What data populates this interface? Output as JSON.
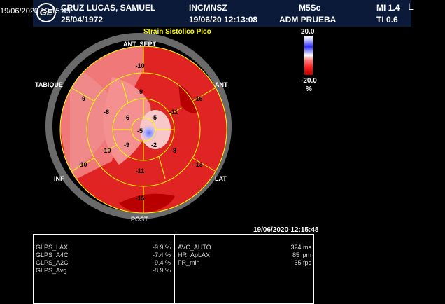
{
  "header": {
    "timestamp_left": "19/06/2020 12:15:49",
    "patient_name": "CRUZ LUCAS, SAMUEL",
    "dob": "25/04/1972",
    "institution": "INCMNSZ",
    "datetime": "19/06/20 12:13:08",
    "probe": "M5Sc",
    "operator": "ADM PRUEBA",
    "mi": "MI 1.4",
    "ti": "TI 0.6",
    "corner_mark": "L",
    "logo_text": "GE"
  },
  "bullseye": {
    "title": "Strain Sistolico Pico",
    "labels": {
      "ant_sept": "ANT_SEPT",
      "ant": "ANT",
      "lat": "LAT",
      "post": "POST",
      "inf": "INF",
      "tabique": "TABIQUE"
    },
    "segments": {
      "basal": [
        "-10",
        "-16",
        "-13",
        "-15",
        "-10",
        "-9"
      ],
      "mid": [
        "-9",
        "-11",
        "-8",
        "-11",
        "-10",
        "-8"
      ],
      "apical": [
        "-5",
        "-2",
        "-9",
        "-6"
      ],
      "apex": "-5"
    },
    "colors": {
      "base_red": "#e82020",
      "dark_red": "#c00000",
      "light_red": "#f07070",
      "blue": "#8080ff",
      "grid": "#ffff00"
    }
  },
  "scale": {
    "max": "20.0",
    "min": "-20.0",
    "unit": "%"
  },
  "timestamp_bottom": "19/06/2020-12:15:48",
  "measurements_left": [
    {
      "label": "GLPS_LAX",
      "value": "-9.9 %"
    },
    {
      "label": "GLPS_A4C",
      "value": "-7.4 %"
    },
    {
      "label": "GLPS_A2C",
      "value": "-9.4 %"
    },
    {
      "label": "GLPS_Avg",
      "value": "-8.9 %"
    }
  ],
  "measurements_right": [
    {
      "label": "AVC_AUTO",
      "value": "324 ms"
    },
    {
      "label": "HR_ApLAX",
      "value": "85 lpm"
    },
    {
      "label": "FR_min",
      "value": "65 fps"
    }
  ]
}
